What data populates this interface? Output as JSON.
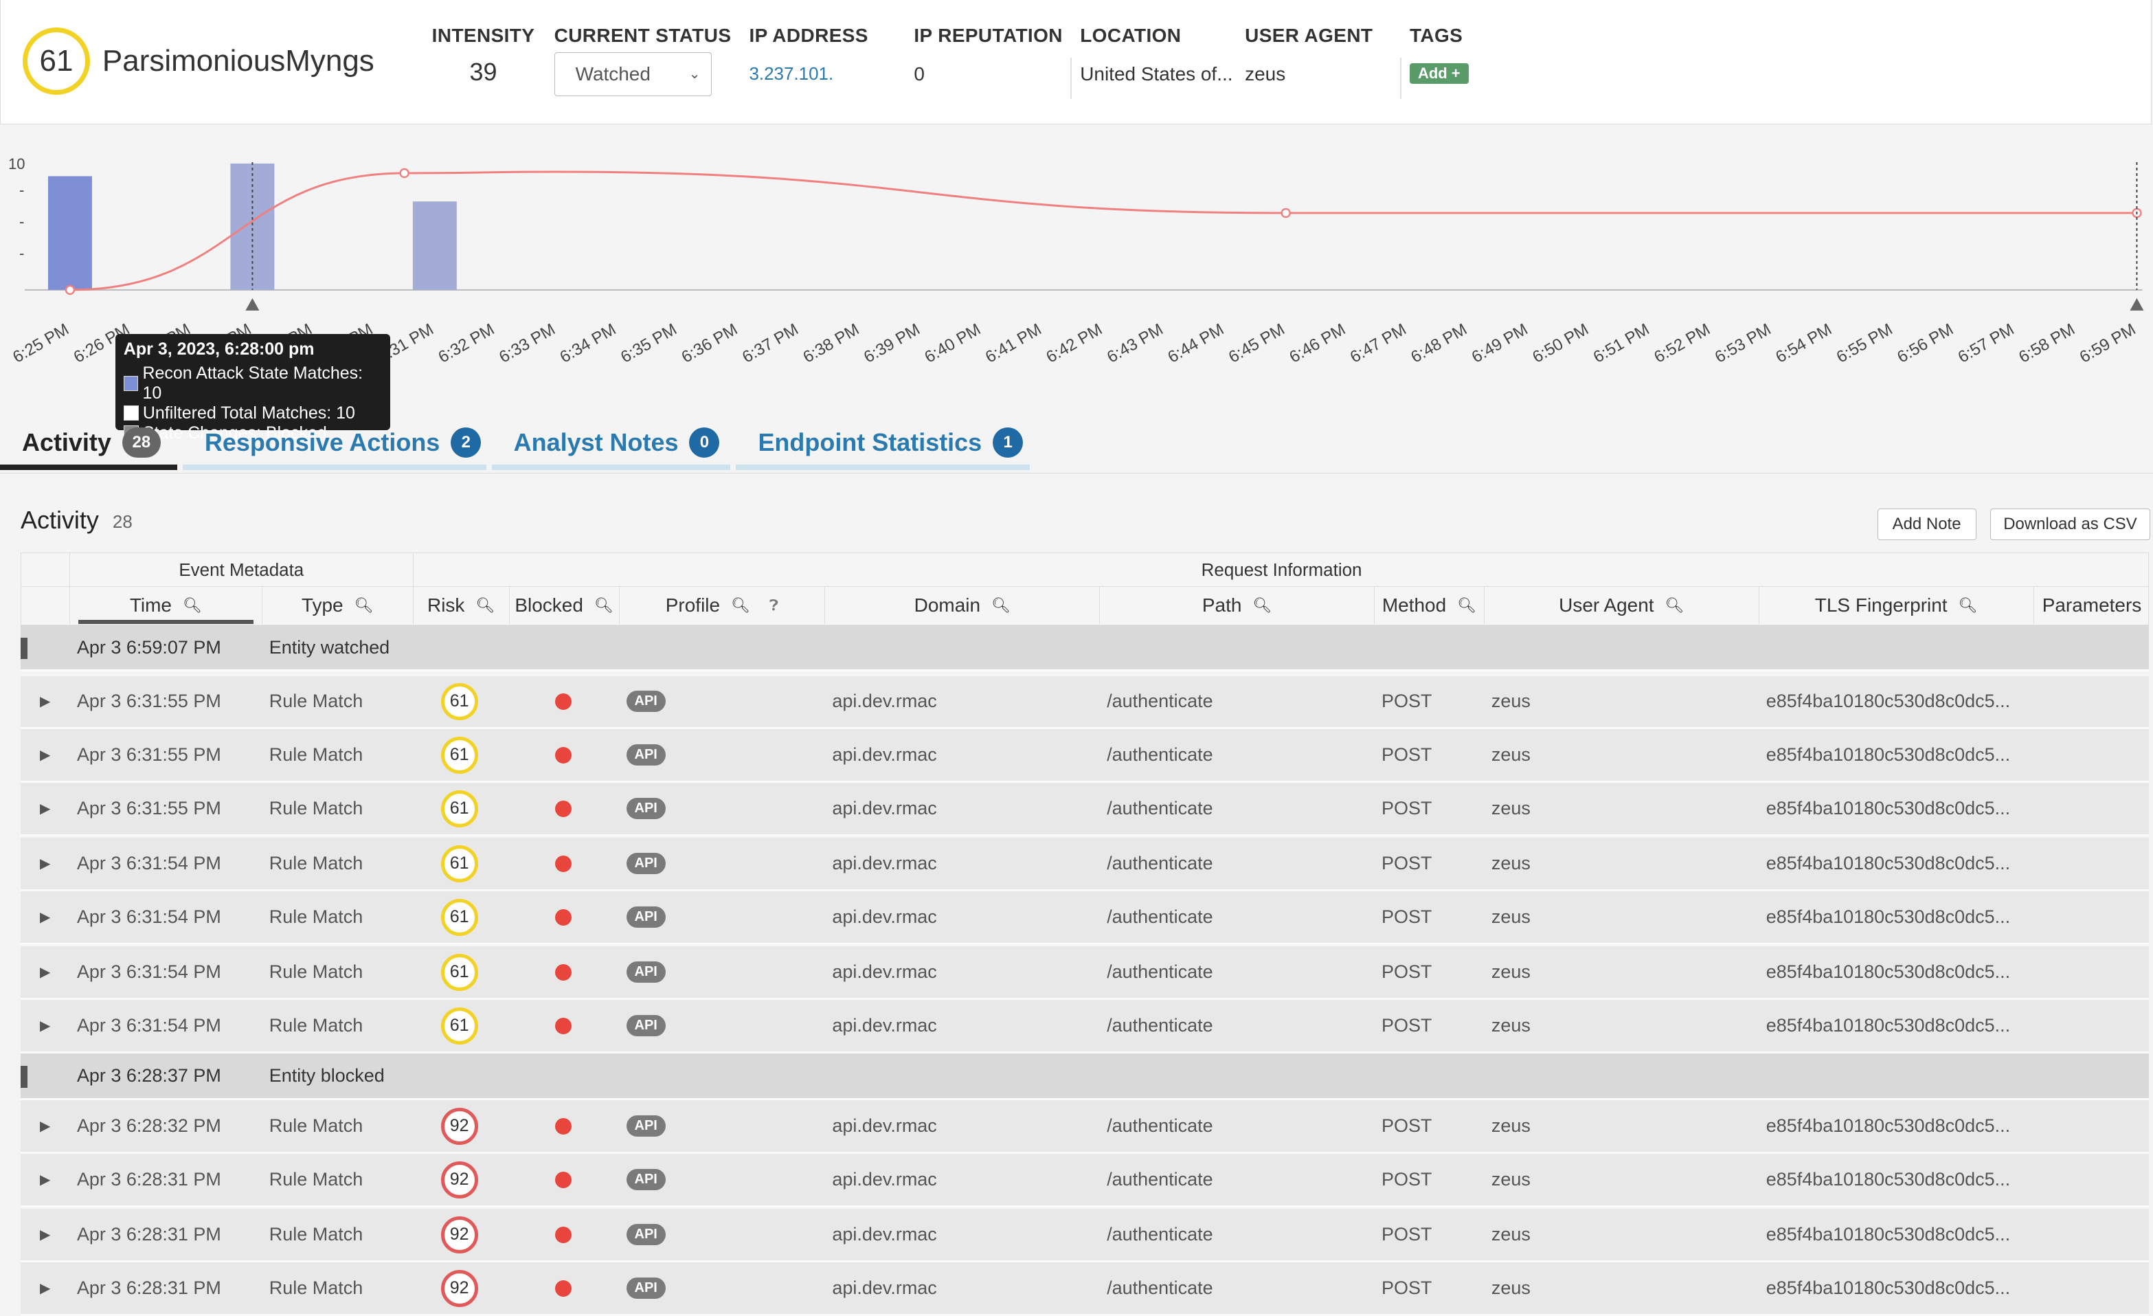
{
  "entity": {
    "score": "61",
    "name": "ParsimoniousMyngs"
  },
  "header": {
    "intensity_label": "INTENSITY",
    "intensity_value": "39",
    "status_label": "CURRENT STATUS",
    "status_value": "Watched",
    "ip_label": "IP ADDRESS",
    "ip_value": "3.237.101.",
    "rep_label": "IP REPUTATION",
    "rep_value": "0",
    "location_label": "LOCATION",
    "location_value": "United States of...",
    "ua_label": "USER AGENT",
    "ua_value": "zeus",
    "tags_label": "TAGS",
    "tags_add": "Add +"
  },
  "chart_data": {
    "type": "bar",
    "y_tick_label": "10",
    "categories": [
      "6:25 PM",
      "6:26 PM",
      "6:27 PM",
      "6:28 PM",
      "6:29 PM",
      "6:30 PM",
      "6:31 PM",
      "6:32 PM",
      "6:33 PM",
      "6:34 PM",
      "6:35 PM",
      "6:36 PM",
      "6:37 PM",
      "6:38 PM",
      "6:39 PM",
      "6:40 PM",
      "6:41 PM",
      "6:42 PM",
      "6:43 PM",
      "6:44 PM",
      "6:45 PM",
      "6:46 PM",
      "6:47 PM",
      "6:48 PM",
      "6:49 PM",
      "6:50 PM",
      "6:51 PM",
      "6:52 PM",
      "6:53 PM",
      "6:54 PM",
      "6:55 PM",
      "6:56 PM",
      "6:57 PM",
      "6:58 PM",
      "6:59 PM"
    ],
    "series": [
      {
        "values": [
          9,
          0,
          0,
          10,
          0,
          0,
          7,
          0,
          0,
          0,
          0,
          0,
          0,
          0,
          0,
          0,
          0,
          0,
          0,
          0,
          0,
          0,
          0,
          0,
          0,
          0,
          0,
          0,
          0,
          0,
          0,
          0,
          0,
          0,
          0
        ]
      }
    ],
    "ylim": [
      0,
      10
    ],
    "colors": {
      "bar": "#7f8fd6",
      "bar_selected": "#a3acd6",
      "line": "#f08080"
    }
  },
  "tooltip": {
    "title": "Apr 3, 2023, 6:28:00 pm",
    "row1": "Recon Attack State Matches: 10",
    "row2": "Unfiltered Total Matches: 10",
    "row3": "State Changes: Blocked"
  },
  "tabs": [
    {
      "label": "Activity",
      "count": "28"
    },
    {
      "label": "Responsive Actions",
      "count": "2"
    },
    {
      "label": "Analyst Notes",
      "count": "0"
    },
    {
      "label": "Endpoint Statistics",
      "count": "1"
    }
  ],
  "activity": {
    "title": "Activity",
    "count": "28",
    "add_note": "Add Note",
    "download_csv": "Download as CSV",
    "group_event": "Event Metadata",
    "group_request": "Request Information",
    "columns": {
      "time": "Time",
      "type": "Type",
      "risk": "Risk",
      "blocked": "Blocked",
      "profile": "Profile",
      "domain": "Domain",
      "path": "Path",
      "method": "Method",
      "user_agent": "User Agent",
      "tls": "TLS Fingerprint",
      "params": "Parameters"
    }
  },
  "rows": [
    {
      "kind": "entity",
      "time": "Apr 3 6:59:07 PM",
      "type": "Entity watched"
    },
    {
      "kind": "event",
      "time": "Apr 3 6:31:55 PM",
      "type": "Rule Match",
      "risk": "61",
      "level": "med",
      "profile": "API",
      "domain": "api.dev.rmac",
      "path": "/authenticate",
      "method": "POST",
      "ua": "zeus",
      "tls": "e85f4ba10180c530d8c0dc5..."
    },
    {
      "kind": "event",
      "time": "Apr 3 6:31:55 PM",
      "type": "Rule Match",
      "risk": "61",
      "level": "med",
      "profile": "API",
      "domain": "api.dev.rmac",
      "path": "/authenticate",
      "method": "POST",
      "ua": "zeus",
      "tls": "e85f4ba10180c530d8c0dc5..."
    },
    {
      "kind": "event",
      "time": "Apr 3 6:31:55 PM",
      "type": "Rule Match",
      "risk": "61",
      "level": "med",
      "profile": "API",
      "domain": "api.dev.rmac",
      "path": "/authenticate",
      "method": "POST",
      "ua": "zeus",
      "tls": "e85f4ba10180c530d8c0dc5..."
    },
    {
      "kind": "event",
      "time": "Apr 3 6:31:54 PM",
      "type": "Rule Match",
      "risk": "61",
      "level": "med",
      "profile": "API",
      "domain": "api.dev.rmac",
      "path": "/authenticate",
      "method": "POST",
      "ua": "zeus",
      "tls": "e85f4ba10180c530d8c0dc5..."
    },
    {
      "kind": "event",
      "time": "Apr 3 6:31:54 PM",
      "type": "Rule Match",
      "risk": "61",
      "level": "med",
      "profile": "API",
      "domain": "api.dev.rmac",
      "path": "/authenticate",
      "method": "POST",
      "ua": "zeus",
      "tls": "e85f4ba10180c530d8c0dc5..."
    },
    {
      "kind": "event",
      "time": "Apr 3 6:31:54 PM",
      "type": "Rule Match",
      "risk": "61",
      "level": "med",
      "profile": "API",
      "domain": "api.dev.rmac",
      "path": "/authenticate",
      "method": "POST",
      "ua": "zeus",
      "tls": "e85f4ba10180c530d8c0dc5..."
    },
    {
      "kind": "event",
      "time": "Apr 3 6:31:54 PM",
      "type": "Rule Match",
      "risk": "61",
      "level": "med",
      "profile": "API",
      "domain": "api.dev.rmac",
      "path": "/authenticate",
      "method": "POST",
      "ua": "zeus",
      "tls": "e85f4ba10180c530d8c0dc5..."
    },
    {
      "kind": "entity",
      "time": "Apr 3 6:28:37 PM",
      "type": "Entity blocked"
    },
    {
      "kind": "event",
      "time": "Apr 3 6:28:32 PM",
      "type": "Rule Match",
      "risk": "92",
      "level": "high",
      "profile": "API",
      "domain": "api.dev.rmac",
      "path": "/authenticate",
      "method": "POST",
      "ua": "zeus",
      "tls": "e85f4ba10180c530d8c0dc5..."
    },
    {
      "kind": "event",
      "time": "Apr 3 6:28:31 PM",
      "type": "Rule Match",
      "risk": "92",
      "level": "high",
      "profile": "API",
      "domain": "api.dev.rmac",
      "path": "/authenticate",
      "method": "POST",
      "ua": "zeus",
      "tls": "e85f4ba10180c530d8c0dc5..."
    },
    {
      "kind": "event",
      "time": "Apr 3 6:28:31 PM",
      "type": "Rule Match",
      "risk": "92",
      "level": "high",
      "profile": "API",
      "domain": "api.dev.rmac",
      "path": "/authenticate",
      "method": "POST",
      "ua": "zeus",
      "tls": "e85f4ba10180c530d8c0dc5..."
    },
    {
      "kind": "event",
      "time": "Apr 3 6:28:31 PM",
      "type": "Rule Match",
      "risk": "92",
      "level": "high",
      "profile": "API",
      "domain": "api.dev.rmac",
      "path": "/authenticate",
      "method": "POST",
      "ua": "zeus",
      "tls": "e85f4ba10180c530d8c0dc5..."
    }
  ]
}
